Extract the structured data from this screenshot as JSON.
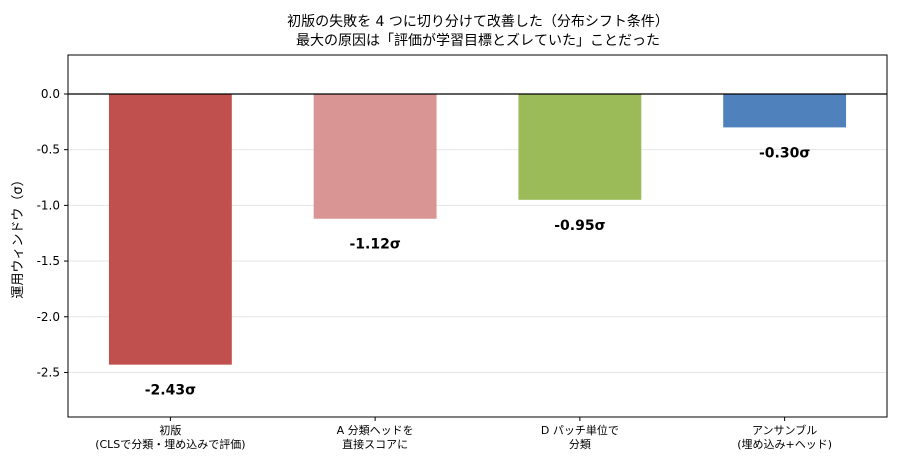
{
  "chart_data": {
    "type": "bar",
    "title": [
      "初版の失敗を 4 つに切り分けて改善した（分布シフト条件）",
      "最大の原因は「評価が学習目標とズレていた」ことだった"
    ],
    "ylabel": "運用ウィンドウ（σ）",
    "xlabel": "",
    "categories": [
      [
        "初版",
        "(CLSで分類・埋め込みで評価)"
      ],
      [
        "A 分類ヘッドを",
        "直接スコアに"
      ],
      [
        "D パッチ単位で",
        "分類"
      ],
      [
        "アンサンブル",
        "(埋め込み+ヘッド)"
      ]
    ],
    "values": [
      -2.43,
      -1.12,
      -0.95,
      -0.3
    ],
    "data_labels": [
      "-2.43σ",
      "-1.12σ",
      "-0.95σ",
      "-0.30σ"
    ],
    "colors": [
      "#c0504d",
      "#d99594",
      "#9bbb59",
      "#4f81bd"
    ],
    "ylim": [
      -2.9,
      0.35
    ],
    "yticks": [
      0.0,
      -0.5,
      -1.0,
      -1.5,
      -2.0,
      -2.5
    ],
    "ytick_labels": [
      "0.0",
      "-0.5",
      "-1.0",
      "-1.5",
      "-2.0",
      "-2.5"
    ],
    "grid": true,
    "zero_line": true
  }
}
